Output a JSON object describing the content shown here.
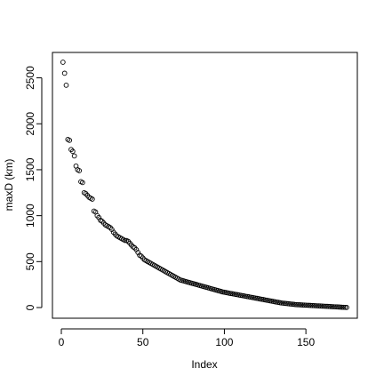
{
  "chart_data": {
    "type": "scatter",
    "title": "",
    "xlabel": "Index",
    "ylabel": "maxD (km)",
    "xlim": [
      0,
      175
    ],
    "ylim": [
      0,
      2670
    ],
    "x_ticks": [
      0,
      50,
      100,
      150
    ],
    "y_ticks": [
      0,
      500,
      1000,
      1500,
      2000,
      2500
    ],
    "x_tick_labels": [
      "0",
      "50",
      "100",
      "150"
    ],
    "y_tick_labels": [
      "0",
      "500",
      "1000",
      "1500",
      "2000",
      "2500"
    ],
    "grid": false,
    "legend": "none",
    "marker": "open-circle",
    "colors": {
      "points": "#000000",
      "axes": "#000000",
      "background": "#ffffff"
    },
    "series": [
      {
        "x": [
          1,
          2,
          3,
          4,
          5,
          6,
          7,
          8,
          9,
          10,
          11,
          12,
          13,
          14,
          15,
          16,
          17,
          18,
          19,
          20,
          21,
          22,
          23,
          24,
          25,
          26,
          27,
          28,
          29,
          30,
          31,
          32,
          33,
          34,
          35,
          36,
          37,
          38,
          39,
          40,
          41,
          42,
          43,
          44,
          45,
          46,
          47,
          48,
          49,
          50,
          51,
          52,
          53,
          54,
          55,
          56,
          57,
          58,
          59,
          60,
          61,
          62,
          63,
          64,
          65,
          66,
          67,
          68,
          69,
          70,
          71,
          72,
          73,
          74,
          75,
          76,
          77,
          78,
          79,
          80,
          81,
          82,
          83,
          84,
          85,
          86,
          87,
          88,
          89,
          90,
          91,
          92,
          93,
          94,
          95,
          96,
          97,
          98,
          99,
          100,
          101,
          102,
          103,
          104,
          105,
          106,
          107,
          108,
          109,
          110,
          111,
          112,
          113,
          114,
          115,
          116,
          117,
          118,
          119,
          120,
          121,
          122,
          123,
          124,
          125,
          126,
          127,
          128,
          129,
          130,
          131,
          132,
          133,
          134,
          135,
          136,
          137,
          138,
          139,
          140,
          141,
          142,
          143,
          144,
          145,
          146,
          147,
          148,
          149,
          150,
          151,
          152,
          153,
          154,
          155,
          156,
          157,
          158,
          159,
          160,
          161,
          162,
          163,
          164,
          165,
          166,
          167,
          168,
          169,
          170,
          171,
          172,
          173,
          174,
          175
        ],
        "y": [
          2670,
          2550,
          2420,
          1830,
          1820,
          1720,
          1700,
          1650,
          1540,
          1500,
          1490,
          1370,
          1360,
          1250,
          1240,
          1220,
          1200,
          1190,
          1180,
          1050,
          1040,
          1000,
          980,
          950,
          940,
          920,
          900,
          890,
          880,
          870,
          850,
          820,
          800,
          780,
          770,
          760,
          750,
          740,
          730,
          730,
          720,
          700,
          680,
          660,
          650,
          630,
          600,
          570,
          560,
          540,
          520,
          510,
          500,
          490,
          480,
          470,
          460,
          450,
          440,
          430,
          420,
          410,
          400,
          390,
          380,
          370,
          360,
          350,
          340,
          330,
          320,
          310,
          300,
          295,
          290,
          285,
          280,
          275,
          270,
          265,
          260,
          255,
          250,
          245,
          240,
          235,
          230,
          225,
          220,
          215,
          210,
          205,
          200,
          195,
          190,
          185,
          180,
          175,
          170,
          167,
          163,
          160,
          156,
          153,
          150,
          147,
          143,
          140,
          137,
          133,
          130,
          127,
          123,
          120,
          117,
          113,
          110,
          107,
          103,
          100,
          97,
          93,
          90,
          87,
          83,
          80,
          77,
          73,
          70,
          67,
          63,
          60,
          57,
          53,
          50,
          48,
          46,
          44,
          42,
          40,
          38,
          36,
          34,
          32,
          31,
          30,
          29,
          28,
          27,
          26,
          25,
          24,
          23,
          22,
          21,
          20,
          19,
          18,
          17,
          16,
          15,
          14,
          13,
          12,
          11,
          10,
          9,
          8,
          7,
          6,
          5,
          4,
          3,
          2,
          1
        ]
      }
    ]
  }
}
